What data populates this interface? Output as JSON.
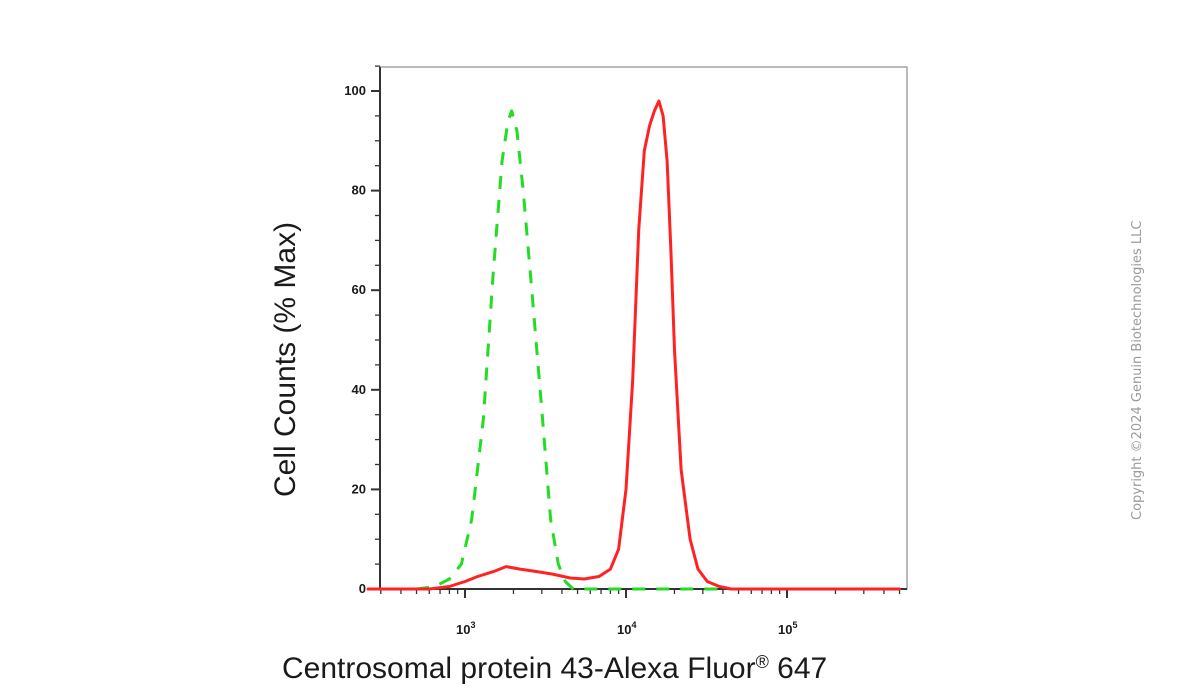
{
  "chart_data": {
    "type": "line",
    "title": "",
    "xlabel": "Centrosomal protein 43-Alexa Fluor",
    "xlabel_sup": "®",
    "xlabel_suffix": " 647",
    "ylabel": "Cell Counts (% Max)",
    "xscale": "log",
    "xlim": [
      250,
      500000
    ],
    "ylim": [
      0,
      105
    ],
    "yticks": [
      0,
      20,
      40,
      60,
      80,
      100
    ],
    "xticks": [
      {
        "value": 1000,
        "base": "10",
        "exp": "3"
      },
      {
        "value": 10000,
        "base": "10",
        "exp": "4"
      },
      {
        "value": 100000,
        "base": "10",
        "exp": "5"
      }
    ],
    "grid": false,
    "legend": "none",
    "series": [
      {
        "color": "#22dd22",
        "style": "dashed",
        "x": [
          250,
          500,
          650,
          800,
          950,
          1100,
          1300,
          1500,
          1700,
          1850,
          1950,
          2100,
          2300,
          2600,
          3000,
          3400,
          3800,
          4200,
          4700,
          5500,
          500000
        ],
        "y": [
          0,
          0,
          0.5,
          2,
          5,
          14,
          34,
          64,
          86,
          94,
          96,
          92,
          80,
          60,
          36,
          14,
          5,
          1.5,
          0,
          0,
          0
        ]
      },
      {
        "color": "#ff2222",
        "style": "solid",
        "x": [
          250,
          600,
          800,
          1000,
          1200,
          1500,
          1800,
          2200,
          2800,
          3500,
          4500,
          5500,
          6800,
          8000,
          9000,
          10000,
          11000,
          12000,
          13000,
          14000,
          15000,
          16000,
          17000,
          18000,
          19000,
          20000,
          22000,
          25000,
          28000,
          32000,
          38000,
          45000,
          60000,
          100000,
          500000
        ],
        "y": [
          0,
          0,
          0.5,
          1.5,
          2.5,
          3.5,
          4.5,
          4,
          3.5,
          3,
          2.2,
          2,
          2.5,
          4,
          8,
          20,
          42,
          72,
          88,
          93,
          96,
          98,
          95,
          86,
          68,
          48,
          24,
          10,
          4,
          1.5,
          0.5,
          0,
          0,
          0,
          0
        ]
      }
    ]
  },
  "watermark": "Copyright ©2024 Genuin Biotechnologies LLC"
}
